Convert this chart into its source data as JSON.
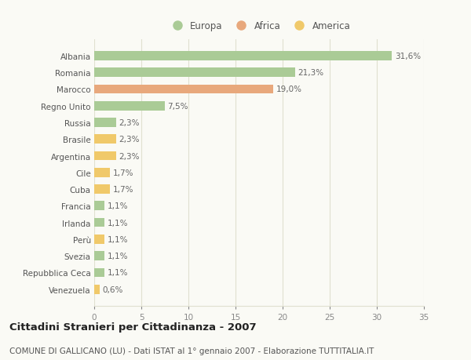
{
  "categories": [
    "Albania",
    "Romania",
    "Marocco",
    "Regno Unito",
    "Russia",
    "Brasile",
    "Argentina",
    "Cile",
    "Cuba",
    "Francia",
    "Irlanda",
    "Perù",
    "Svezia",
    "Repubblica Ceca",
    "Venezuela"
  ],
  "values": [
    31.6,
    21.3,
    19.0,
    7.5,
    2.3,
    2.3,
    2.3,
    1.7,
    1.7,
    1.1,
    1.1,
    1.1,
    1.1,
    1.1,
    0.6
  ],
  "labels": [
    "31,6%",
    "21,3%",
    "19,0%",
    "7,5%",
    "2,3%",
    "2,3%",
    "2,3%",
    "1,7%",
    "1,7%",
    "1,1%",
    "1,1%",
    "1,1%",
    "1,1%",
    "1,1%",
    "0,6%"
  ],
  "continents": [
    "Europa",
    "Europa",
    "Africa",
    "Europa",
    "Europa",
    "America",
    "America",
    "America",
    "America",
    "Europa",
    "Europa",
    "America",
    "Europa",
    "Europa",
    "America"
  ],
  "colors": {
    "Europa": "#AACB96",
    "Africa": "#E8A87C",
    "America": "#F0C96A"
  },
  "legend_order": [
    "Europa",
    "Africa",
    "America"
  ],
  "legend_colors": {
    "Europa": "#AACB96",
    "Africa": "#E8A87C",
    "America": "#F0C96A"
  },
  "xlim": [
    0,
    35
  ],
  "xticks": [
    0,
    5,
    10,
    15,
    20,
    25,
    30,
    35
  ],
  "title": "Cittadini Stranieri per Cittadinanza - 2007",
  "subtitle": "COMUNE DI GALLICANO (LU) - Dati ISTAT al 1° gennaio 2007 - Elaborazione TUTTITALIA.IT",
  "background_color": "#FAFAF5",
  "grid_color": "#E0E0D0",
  "bar_height": 0.55,
  "label_fontsize": 7.5,
  "ytick_fontsize": 7.5,
  "xtick_fontsize": 7.5,
  "legend_fontsize": 8.5,
  "title_fontsize": 9.5,
  "subtitle_fontsize": 7.5
}
